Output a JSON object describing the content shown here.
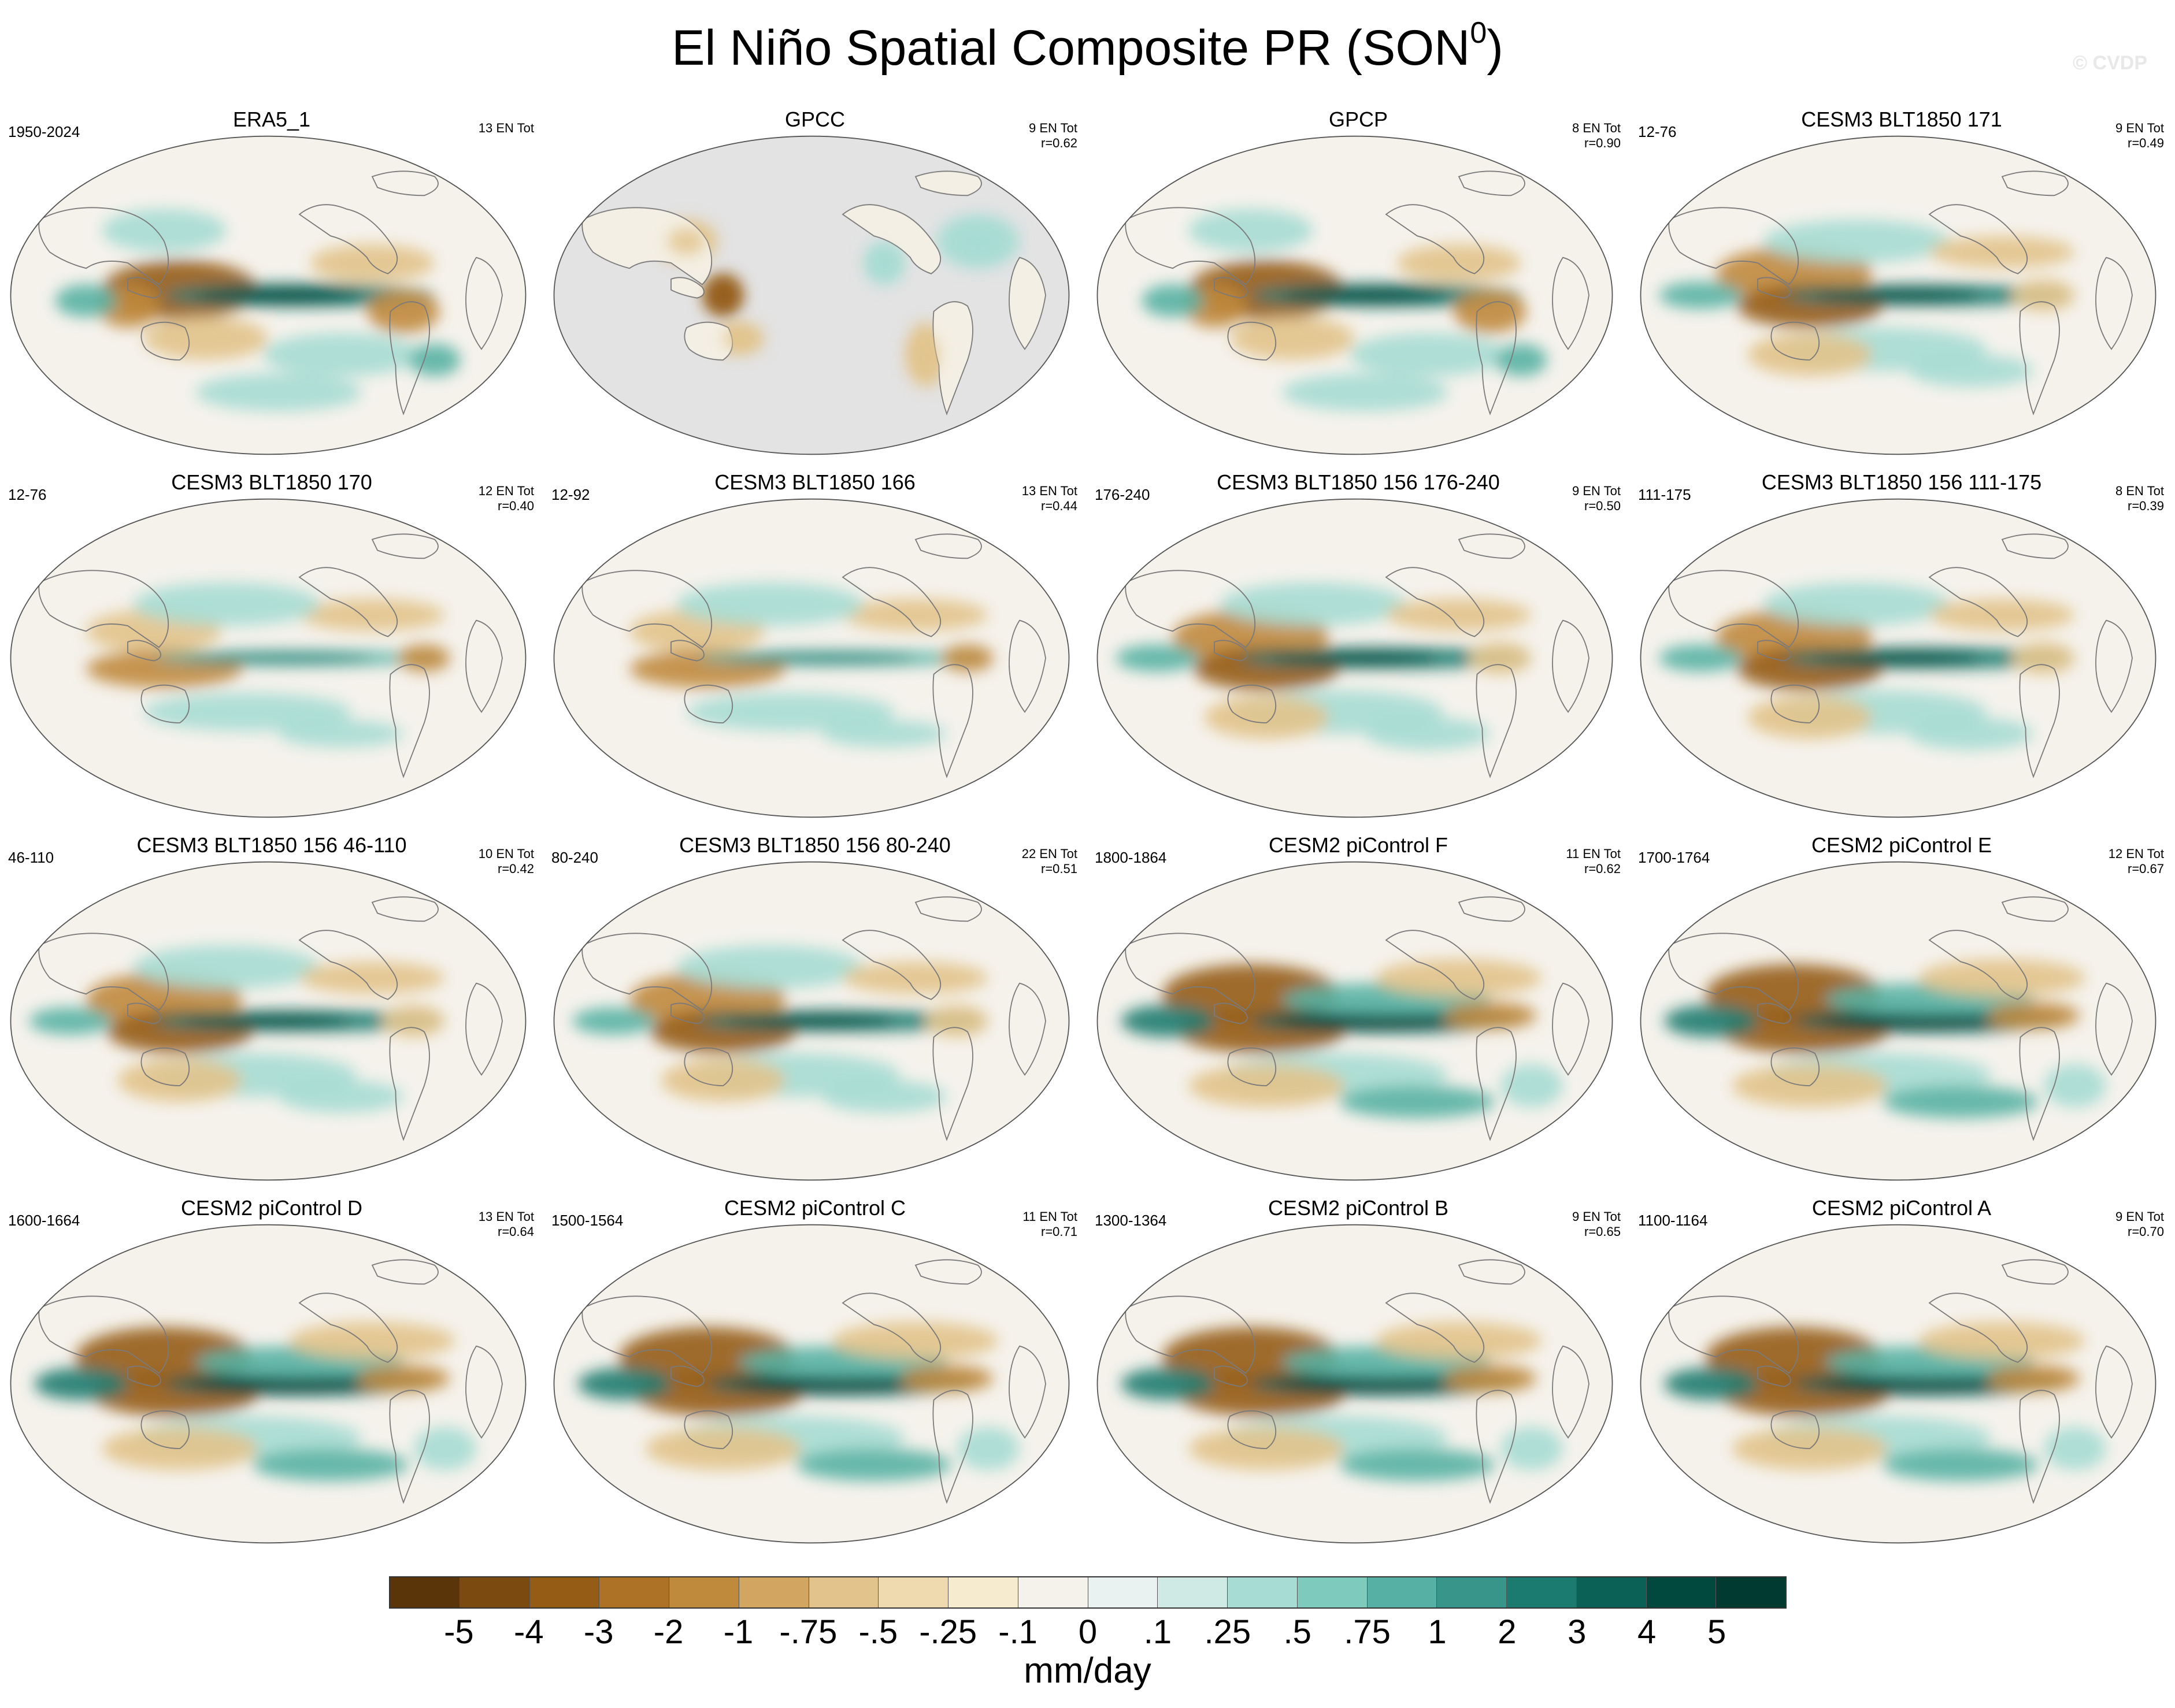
{
  "figure": {
    "title": "El Niño Spatial Composite PR (SON",
    "title_sup": "0",
    "title_tail": ")",
    "watermark": "© CVDP"
  },
  "panels": [
    {
      "title": "ERA5_1",
      "period": "1950-2024",
      "events": "13 EN Tot",
      "corr": "",
      "pattern": "obs",
      "land_only": false
    },
    {
      "title": "GPCC",
      "period": "",
      "events": "9 EN Tot",
      "corr": "r=0.62",
      "pattern": "land",
      "land_only": true
    },
    {
      "title": "GPCP",
      "period": "",
      "events": "8 EN Tot",
      "corr": "r=0.90",
      "pattern": "obs",
      "land_only": false
    },
    {
      "title": "CESM3 BLT1850 171",
      "period": "12-76",
      "events": "9 EN Tot",
      "corr": "r=0.49",
      "pattern": "model",
      "land_only": false
    },
    {
      "title": "CESM3 BLT1850 170",
      "period": "12-76",
      "events": "12 EN Tot",
      "corr": "r=0.40",
      "pattern": "weak",
      "land_only": false
    },
    {
      "title": "CESM3 BLT1850 166",
      "period": "12-92",
      "events": "13 EN Tot",
      "corr": "r=0.44",
      "pattern": "weak",
      "land_only": false
    },
    {
      "title": "CESM3 BLT1850 156 176-240",
      "period": "176-240",
      "events": "9 EN Tot",
      "corr": "r=0.50",
      "pattern": "model",
      "land_only": false
    },
    {
      "title": "CESM3 BLT1850 156 111-175",
      "period": "111-175",
      "events": "8 EN Tot",
      "corr": "r=0.39",
      "pattern": "model",
      "land_only": false
    },
    {
      "title": "CESM3 BLT1850 156 46-110",
      "period": "46-110",
      "events": "10 EN Tot",
      "corr": "r=0.42",
      "pattern": "model",
      "land_only": false
    },
    {
      "title": "CESM3 BLT1850 156 80-240",
      "period": "80-240",
      "events": "22 EN Tot",
      "corr": "r=0.51",
      "pattern": "model",
      "land_only": false
    },
    {
      "title": "CESM2 piControl F",
      "period": "1800-1864",
      "events": "11 EN Tot",
      "corr": "r=0.62",
      "pattern": "strong",
      "land_only": false
    },
    {
      "title": "CESM2 piControl E",
      "period": "1700-1764",
      "events": "12 EN Tot",
      "corr": "r=0.67",
      "pattern": "strong",
      "land_only": false
    },
    {
      "title": "CESM2 piControl D",
      "period": "1600-1664",
      "events": "13 EN Tot",
      "corr": "r=0.64",
      "pattern": "strong",
      "land_only": false
    },
    {
      "title": "CESM2 piControl C",
      "period": "1500-1564",
      "events": "11 EN Tot",
      "corr": "r=0.71",
      "pattern": "strong",
      "land_only": false
    },
    {
      "title": "CESM2 piControl B",
      "period": "1300-1364",
      "events": "9 EN Tot",
      "corr": "r=0.65",
      "pattern": "strong",
      "land_only": false
    },
    {
      "title": "CESM2 piControl A",
      "period": "1100-1164",
      "events": "9 EN Tot",
      "corr": "r=0.70",
      "pattern": "strong",
      "land_only": false
    }
  ],
  "colorbar": {
    "labels": [
      "-5",
      "-4",
      "-3",
      "-2",
      "-1",
      "-.75",
      "-.5",
      "-.25",
      "-.1",
      "0",
      ".1",
      ".25",
      ".5",
      ".75",
      "1",
      "2",
      "3",
      "4",
      "5"
    ],
    "colors": [
      "#5a3509",
      "#7a4a10",
      "#955c15",
      "#ad7226",
      "#c08a3d",
      "#d2a561",
      "#e2c38b",
      "#eedaae",
      "#f6ebcf",
      "#f5f2ec",
      "#e9f2f1",
      "#cfeae5",
      "#a6dcd3",
      "#7ecbbd",
      "#56b1a4",
      "#379689",
      "#1c7b70",
      "#0c6157",
      "#01493f",
      "#003a31"
    ],
    "units": "mm/day"
  }
}
